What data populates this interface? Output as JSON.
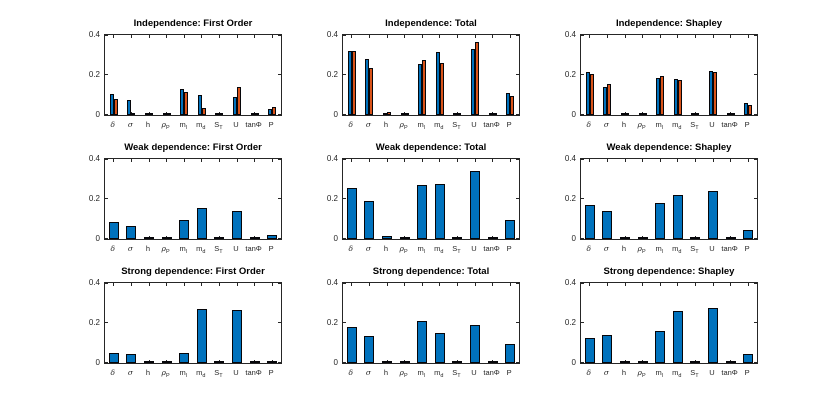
{
  "figure": {
    "background": "#ffffff",
    "rows": [
      "Independence",
      "Weak dependence",
      "Strong dependence"
    ],
    "columns": [
      "First Order",
      "Total",
      "Shapley"
    ]
  },
  "style": {
    "series_colors": [
      "#0072bd",
      "#d95319"
    ],
    "bar_edge_color": "#06060a",
    "axis_color": "#262626",
    "title_color": "#000000"
  },
  "categories": [
    {
      "base": "δ",
      "sub": ""
    },
    {
      "base": "σ",
      "sub": ""
    },
    {
      "base": "h",
      "sub": ""
    },
    {
      "base": "ρ",
      "sub": "P"
    },
    {
      "base": "m",
      "sub": "l"
    },
    {
      "base": "m",
      "sub": "d"
    },
    {
      "base": "S",
      "sub": "T"
    },
    {
      "base": "U",
      "sub": ""
    },
    {
      "base": "tanΦ",
      "sub": ""
    },
    {
      "base": "P",
      "sub": ""
    }
  ],
  "axes": {
    "ylim": [
      0,
      0.4
    ],
    "yticks": [
      0,
      0.2,
      0.4
    ],
    "ytick_labels": [
      "0",
      "0.2",
      "0.4"
    ],
    "grid": false,
    "legend": "none"
  },
  "chart_data": [
    {
      "type": "bar",
      "title": "Independence: First Order",
      "ylim": [
        0,
        0.4
      ],
      "series": [
        {
          "name": "series1",
          "values": [
            0.105,
            0.075,
            0.002,
            0.001,
            0.13,
            0.1,
            0.003,
            0.09,
            0.001,
            0.03
          ]
        },
        {
          "name": "series2",
          "values": [
            0.082,
            0.001,
            0.01,
            0.002,
            0.115,
            0.035,
            0.007,
            0.14,
            0.001,
            0.04
          ]
        }
      ]
    },
    {
      "type": "bar",
      "title": "Independence: Total",
      "ylim": [
        0,
        0.4
      ],
      "series": [
        {
          "name": "series1",
          "values": [
            0.32,
            0.28,
            0.005,
            0.001,
            0.255,
            0.315,
            0.005,
            0.33,
            0.003,
            0.11
          ]
        },
        {
          "name": "series2",
          "values": [
            0.32,
            0.235,
            0.015,
            0.004,
            0.275,
            0.26,
            0.01,
            0.365,
            0.002,
            0.095
          ]
        }
      ]
    },
    {
      "type": "bar",
      "title": "Independence: Shapley",
      "ylim": [
        0,
        0.4
      ],
      "series": [
        {
          "name": "series1",
          "values": [
            0.213,
            0.14,
            0.008,
            0.001,
            0.185,
            0.178,
            0.007,
            0.222,
            0.002,
            0.06
          ]
        },
        {
          "name": "series2",
          "values": [
            0.205,
            0.155,
            0.005,
            0.002,
            0.197,
            0.176,
            0.005,
            0.215,
            0.002,
            0.052
          ]
        }
      ]
    },
    {
      "type": "bar",
      "title": "Weak dependence: First Order",
      "ylim": [
        0,
        0.4
      ],
      "series": [
        {
          "name": "series1",
          "values": [
            0.085,
            0.065,
            0.002,
            0.001,
            0.095,
            0.155,
            0.003,
            0.14,
            0.001,
            0.022
          ]
        }
      ]
    },
    {
      "type": "bar",
      "title": "Weak dependence: Total",
      "ylim": [
        0,
        0.4
      ],
      "series": [
        {
          "name": "series1",
          "values": [
            0.255,
            0.19,
            0.013,
            0.003,
            0.27,
            0.273,
            0.006,
            0.34,
            0.001,
            0.095
          ]
        }
      ]
    },
    {
      "type": "bar",
      "title": "Weak dependence: Shapley",
      "ylim": [
        0,
        0.4
      ],
      "series": [
        {
          "name": "series1",
          "values": [
            0.17,
            0.14,
            0.006,
            0.002,
            0.18,
            0.222,
            0.005,
            0.24,
            0.001,
            0.047
          ]
        }
      ]
    },
    {
      "type": "bar",
      "title": "Strong dependence: First Order",
      "ylim": [
        0,
        0.4
      ],
      "series": [
        {
          "name": "series1",
          "values": [
            0.05,
            0.045,
            0.001,
            0.001,
            0.052,
            0.268,
            0.001,
            0.265,
            0.001,
            0.012
          ]
        }
      ]
    },
    {
      "type": "bar",
      "title": "Strong dependence: Total",
      "ylim": [
        0,
        0.4
      ],
      "series": [
        {
          "name": "series1",
          "values": [
            0.18,
            0.135,
            0.012,
            0.001,
            0.21,
            0.15,
            0.002,
            0.19,
            0.001,
            0.097
          ]
        }
      ]
    },
    {
      "type": "bar",
      "title": "Strong dependence: Shapley",
      "ylim": [
        0,
        0.4
      ],
      "series": [
        {
          "name": "series1",
          "values": [
            0.127,
            0.14,
            0.008,
            0.001,
            0.158,
            0.262,
            0.002,
            0.275,
            0.001,
            0.045
          ]
        }
      ]
    }
  ]
}
